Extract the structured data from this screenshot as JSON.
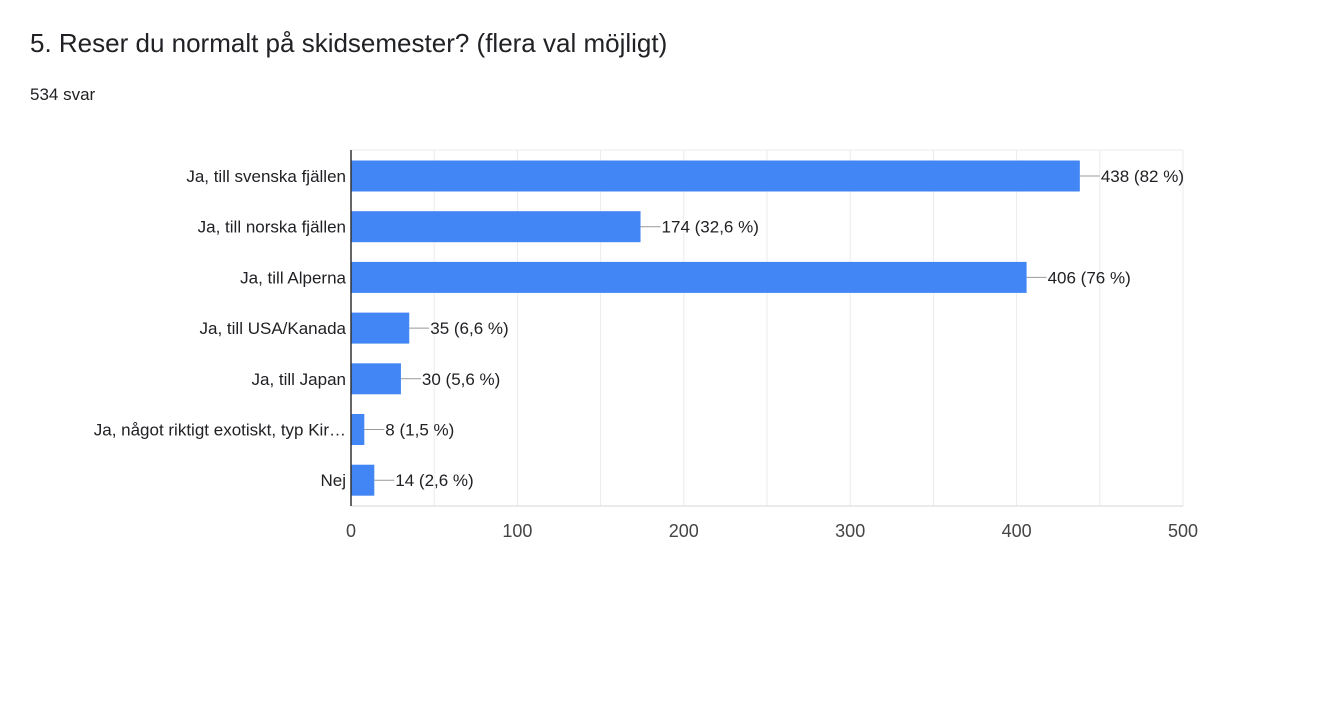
{
  "header": {
    "title": "5. Reser du normalt på skidsemester? (flera val möjligt)",
    "response_count": "534 svar"
  },
  "colors": {
    "bar": "#4285f4",
    "grid": "#ebebeb",
    "axis": "#333333",
    "leader": "#999999",
    "text": "#202124"
  },
  "chart_data": {
    "type": "bar",
    "orientation": "horizontal",
    "categories": [
      "Ja, till svenska fjällen",
      "Ja, till norska fjällen",
      "Ja, till Alperna",
      "Ja, till USA/Kanada",
      "Ja, till Japan",
      "Ja, något riktigt exotiskt, typ Kir…",
      "Nej"
    ],
    "values": [
      438,
      174,
      406,
      35,
      30,
      8,
      14
    ],
    "data_labels": [
      "438 (82 %)",
      "174 (32,6 %)",
      "406 (76 %)",
      "35 (6,6 %)",
      "30 (5,6 %)",
      "8 (1,5 %)",
      "14 (2,6 %)"
    ],
    "xlim": [
      0,
      500
    ],
    "xticks": [
      0,
      100,
      200,
      300,
      400,
      500
    ],
    "xtick_labels": [
      "0",
      "100",
      "200",
      "300",
      "400",
      "500"
    ],
    "grid": true,
    "legend": "none"
  }
}
